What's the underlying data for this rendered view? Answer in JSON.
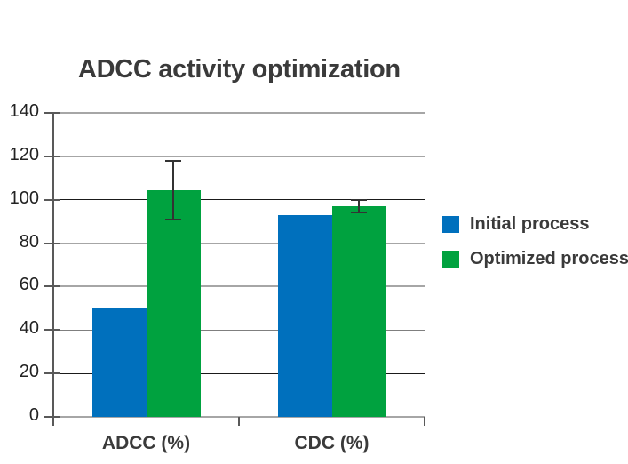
{
  "title": "ADCC activity optimization",
  "legend": {
    "items": [
      {
        "label": "Initial process",
        "color": "#0070bd"
      },
      {
        "label": "Optimized process",
        "color": "#00a23f"
      }
    ]
  },
  "chart_data": {
    "type": "bar",
    "title": "ADCC activity optimization",
    "categories": [
      "ADCC (%)",
      "CDC (%)"
    ],
    "series": [
      {
        "name": "Initial process",
        "color": "#0070bd",
        "values": [
          50,
          93
        ],
        "error_bars": null
      },
      {
        "name": "Optimized process",
        "color": "#00a23f",
        "values": [
          104.5,
          97
        ],
        "error_bars": [
          13.5,
          3
        ]
      }
    ],
    "xlabel": "",
    "ylabel": "",
    "ylim": [
      0,
      140
    ],
    "yticks": [
      0,
      20,
      40,
      60,
      80,
      100,
      120,
      140
    ],
    "grid": true,
    "legend_position": "right",
    "colors": {
      "grid_light": "#a6a6a6",
      "grid_mid": "#7f7f7f",
      "grid_dark": "#1a1a1a",
      "axis": "#595959",
      "error_bar": "#333333",
      "text": "#3a3a3a"
    }
  }
}
